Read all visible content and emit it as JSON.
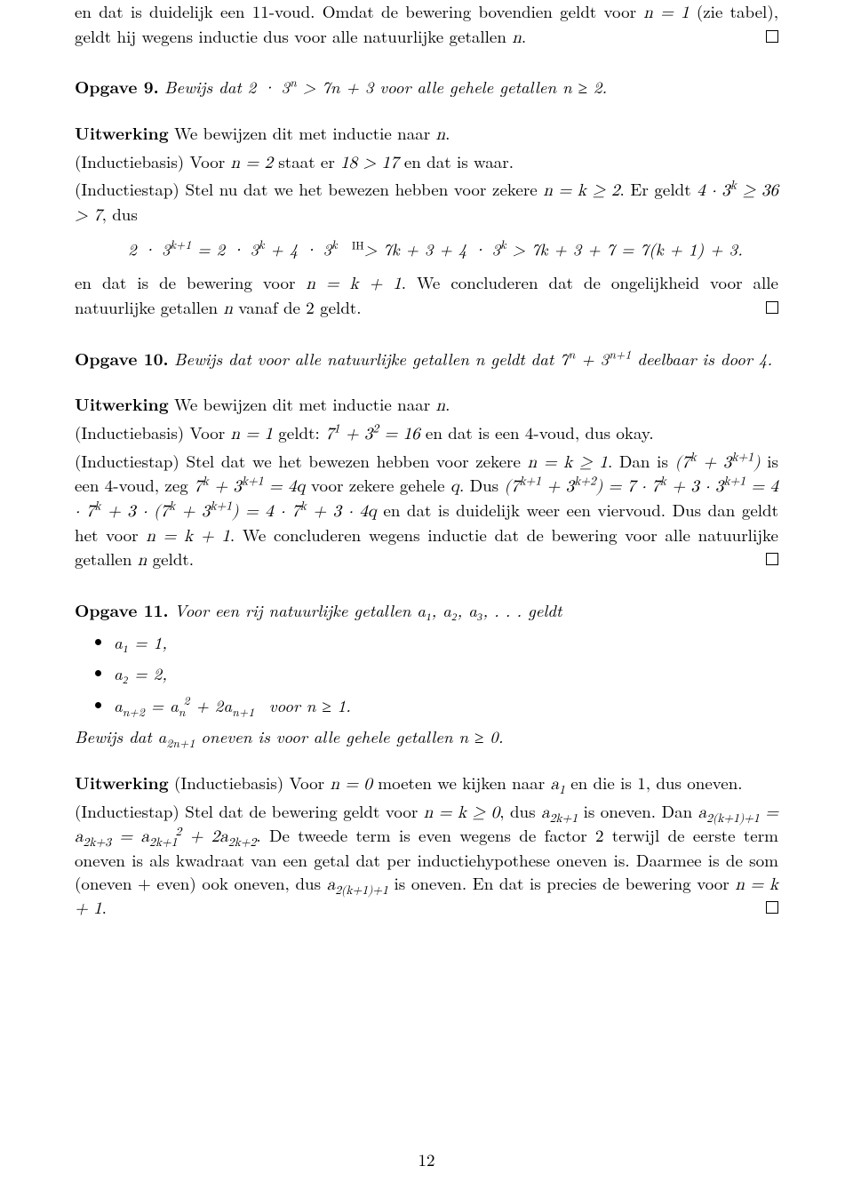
{
  "page": {
    "number": "12",
    "text_color": "#000000",
    "background": "#ffffff",
    "font_size_pt": 11
  },
  "para_intro_1": "en dat is duidelijk een 11-voud. Omdat de bewering bovendien geldt voor ",
  "para_intro_math1": "n = 1",
  "para_intro_2": " (zie tabel), geldt hij wegens inductie dus voor alle natuurlijke getallen ",
  "para_intro_math2": "n",
  "para_intro_3": ".",
  "op9_label": "Opgave 9.",
  "op9_text_a": "Bewijs dat ",
  "op9_math1": "2 · 3",
  "op9_math1_sup": "n",
  "op9_math2": " > 7n + 3",
  "op9_text_b": " voor alle gehele getallen ",
  "op9_math3": "n ≥ 2",
  "op9_text_c": ".",
  "op9_u_label": "Uitwerking",
  "op9_u_1": " We bewijzen dit met inductie naar ",
  "op9_u_math_n": "n",
  "op9_u_2": ".",
  "op9_ib_1": "(Inductiebasis) Voor ",
  "op9_ib_math1": "n = 2",
  "op9_ib_2": " staat er ",
  "op9_ib_math2": "18 > 17",
  "op9_ib_3": " en dat is waar.",
  "op9_is_1": "(Inductiestap) Stel nu dat we het bewezen hebben voor zekere ",
  "op9_is_math1": "n = k ≥ 2",
  "op9_is_2": ".  Er geldt ",
  "op9_is_math2": "4 · 3",
  "op9_is_math2_sup": "k",
  "op9_is_math3": " ≥ 36 > 7",
  "op9_is_3": ", dus",
  "op9_eq": "2 · 3ᵏ⁺¹ = 2 · 3ᵏ + 4 · 3ᵏ  >  7k + 3 + 4 · 3ᵏ > 7k + 3 + 7 = 7(k + 1) + 3.",
  "op9_eq_ih": "IH",
  "op9_concl_1": "en dat is de bewering voor ",
  "op9_concl_math1": "n = k + 1",
  "op9_concl_2": ". We concluderen dat de ongelijkheid voor alle natuurlijke getallen ",
  "op9_concl_math2": "n",
  "op9_concl_3": " vanaf de 2 geldt.",
  "op10_label": "Opgave 10.",
  "op10_text_a": "Bewijs dat voor alle natuurlijke getallen ",
  "op10_math_n": "n",
  "op10_text_b": " geldt dat ",
  "op10_math1": "7",
  "op10_math1_sup": "n",
  "op10_math2": " + 3",
  "op10_math2_sup": "n+1",
  "op10_text_c": " deelbaar is door 4.",
  "op10_u_label": "Uitwerking",
  "op10_u_1": " We bewijzen dit met inductie naar ",
  "op10_u_n": "n",
  "op10_u_2": ".",
  "op10_ib_1": "(Inductiebasis) Voor ",
  "op10_ib_math1": "n = 1",
  "op10_ib_2": " geldt: ",
  "op10_ib_math2": "7¹ + 3² = 16",
  "op10_ib_3": " en dat is een 4-voud, dus okay.",
  "op10_is_1": "(Inductiestap) Stel dat we het bewezen hebben voor zekere ",
  "op10_is_math1": "n = k ≥ 1",
  "op10_is_2": ". Dan is ",
  "op10_is_math2": "(7ᵏ + 3ᵏ⁺¹)",
  "op10_is_3": " is een 4-voud, zeg ",
  "op10_is_math3": "7ᵏ + 3ᵏ⁺¹ = 4q",
  "op10_is_4": " voor zekere gehele ",
  "op10_is_math4": "q",
  "op10_is_5": ". Dus ",
  "op10_is_math5": "(7ᵏ⁺¹ + 3ᵏ⁺²) = 7 · 7ᵏ + 3 · 3ᵏ⁺¹ = 4 · 7ᵏ + 3 · (7ᵏ + 3ᵏ⁺¹) = 4 · 7ᵏ + 3 · 4q",
  "op10_is_6": " en dat is duidelijk weer een viervoud. Dus dan geldt het voor ",
  "op10_is_math6": "n = k + 1",
  "op10_is_7": ". We concluderen wegens inductie dat de bewering voor alle natuurlijke getallen ",
  "op10_is_math7": "n",
  "op10_is_8": " geldt.",
  "op11_label": "Opgave 11.",
  "op11_text_a": "Voor een rij natuurlijke getallen ",
  "op11_math_seq": "a₁, a₂, a₃, . . .",
  "op11_text_b": " geldt",
  "op11_item1": "a₁ = 1,",
  "op11_item2": "a₂ = 2,",
  "op11_item3_a": "a",
  "op11_item3_sub1": "n+2",
  "op11_item3_b": " = a",
  "op11_item3_sub2": "n",
  "op11_item3_sup2": "2",
  "op11_item3_c": " + 2a",
  "op11_item3_sub3": "n+1",
  "op11_item3_d": " voor n ≥ 1.",
  "op11_claim_a": "Bewijs dat ",
  "op11_claim_math1": "a",
  "op11_claim_sub": "2n+1",
  "op11_claim_b": " oneven is voor alle gehele getallen ",
  "op11_claim_math2": "n ≥ 0",
  "op11_claim_c": ".",
  "op11_u_label": "Uitwerking",
  "op11_ib_1": " (Inductiebasis) Voor ",
  "op11_ib_math1": "n = 0",
  "op11_ib_2": " moeten we kijken naar ",
  "op11_ib_math2": "a₁",
  "op11_ib_3": " en die is 1, dus oneven.",
  "op11_is_1": "(Inductiestap) Stel dat de bewering geldt voor ",
  "op11_is_math1": "n = k ≥ 0",
  "op11_is_2": ", dus ",
  "op11_is_math2": "a",
  "op11_is_sub2": "2k+1",
  "op11_is_3": " is oneven.  Dan ",
  "op11_is_math3": "a",
  "op11_is_sub3": "2(k+1)+1",
  "op11_is_4": " = a",
  "op11_is_sub4": "2k+3",
  "op11_is_5": " = a",
  "op11_is_sub5": "2k+1",
  "op11_is_sup5": "2",
  "op11_is_6": " + 2a",
  "op11_is_sub6": "2k+2",
  "op11_is_7": ". De tweede term is even wegens de factor 2 terwijl de eerste term oneven is als kwadraat van een getal dat per inductiehypothese oneven is. Daarmee is de som (oneven + even) ook oneven, dus ",
  "op11_is_math7": "a",
  "op11_is_sub7": "2(k+1)+1",
  "op11_is_8": " is oneven. En dat is precies de bewering voor ",
  "op11_is_math8": "n = k + 1",
  "op11_is_9": "."
}
